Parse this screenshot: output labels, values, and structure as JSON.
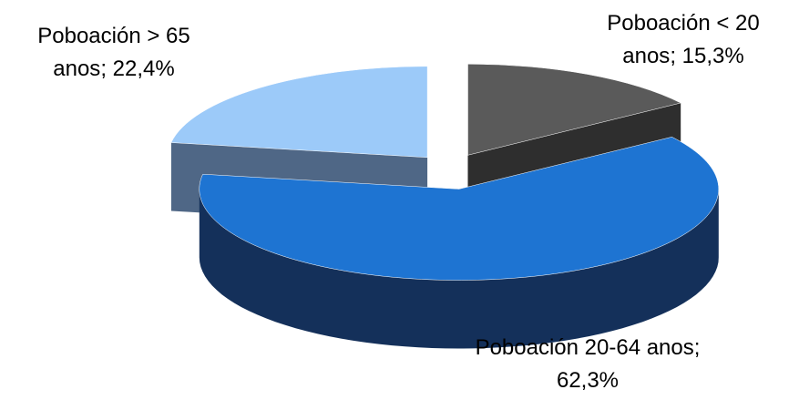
{
  "chart_data": {
    "type": "pie3d",
    "categories": [
      "Poboación < 20 anos",
      "Poboación 20-64 anos",
      "Poboación > 65 anos"
    ],
    "values": [
      15.3,
      62.3,
      22.4
    ],
    "value_labels": [
      "15,3%",
      "62,3%",
      "22,4%"
    ],
    "label_separator": "; ",
    "colors": [
      "#5a5a5a",
      "#1e74d2",
      "#9ccaf9"
    ],
    "side_colors": [
      "#2e2e2e",
      "#14305a",
      "#4f6786"
    ]
  }
}
